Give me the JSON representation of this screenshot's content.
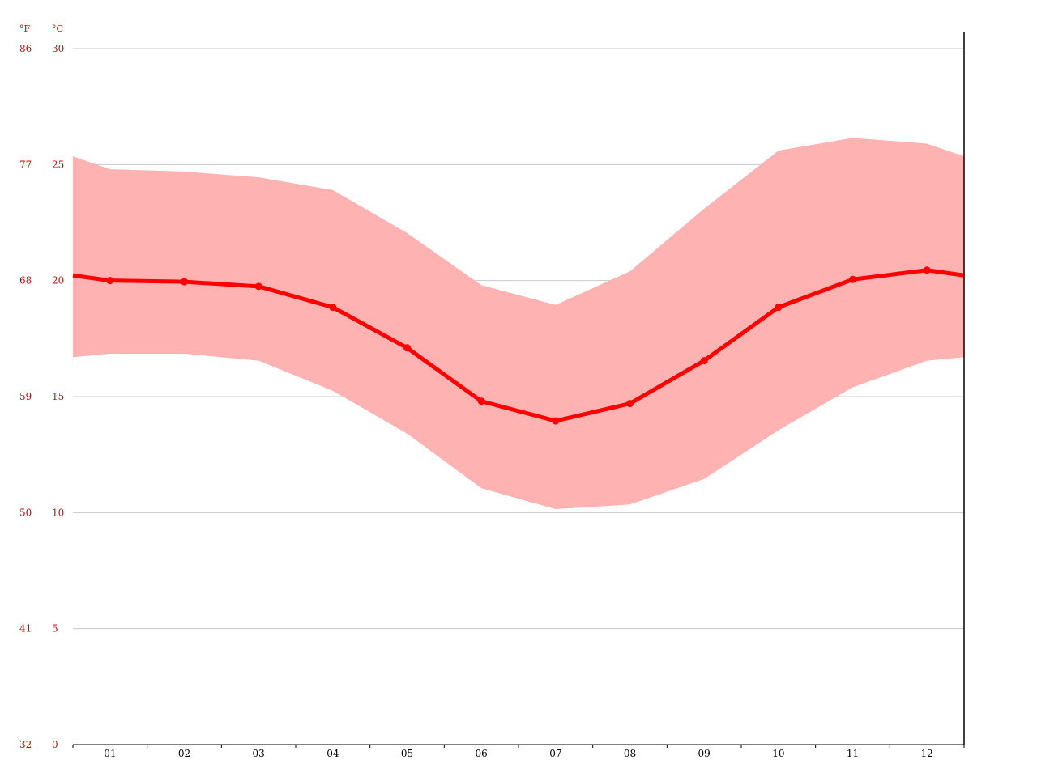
{
  "colors": {
    "line": "#ff0000",
    "band": "#ffb2b2",
    "axis_text": "#e00000",
    "grid": "#c8c8c8",
    "axis": "#000000"
  },
  "chart_data": {
    "type": "line",
    "title": "",
    "xlabel": "",
    "ylabel": "",
    "categories": [
      "01",
      "02",
      "03",
      "04",
      "05",
      "06",
      "07",
      "08",
      "09",
      "10",
      "11",
      "12"
    ],
    "series": [
      {
        "values": [
          20.0,
          19.95,
          19.75,
          18.85,
          17.1,
          14.8,
          13.95,
          14.7,
          16.55,
          18.85,
          20.05,
          20.45
        ]
      }
    ],
    "band": {
      "upper": [
        24.8,
        24.7,
        24.45,
        23.9,
        22.05,
        19.8,
        18.95,
        20.4,
        23.1,
        25.6,
        26.15,
        25.9
      ],
      "lower": [
        16.85,
        16.85,
        16.55,
        15.25,
        13.4,
        11.05,
        10.15,
        10.35,
        11.45,
        13.55,
        15.4,
        16.55
      ]
    },
    "ylim": [
      0,
      30
    ],
    "y_ticks_c": [
      "0",
      "5",
      "10",
      "15",
      "20",
      "25",
      "30"
    ],
    "y_ticks_f": [
      "32",
      "41",
      "50",
      "59",
      "68",
      "77",
      "86"
    ],
    "unit_c": "°C",
    "unit_f": "°F",
    "grid": true
  }
}
